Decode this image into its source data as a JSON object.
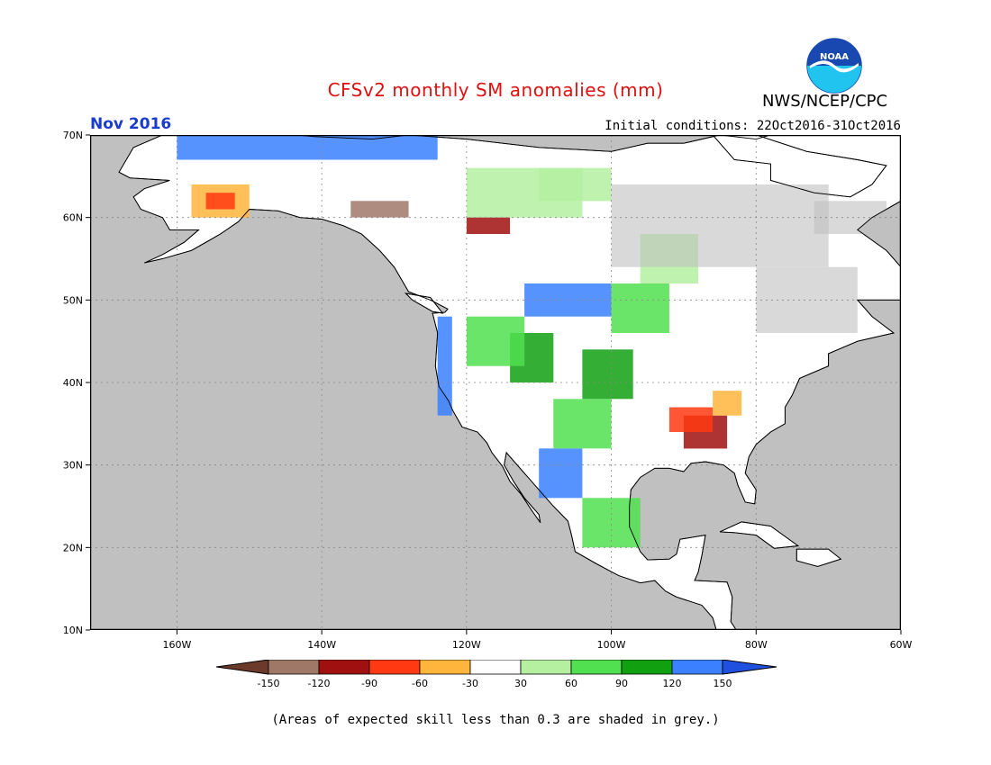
{
  "header": {
    "title": "CFSv2 monthly SM anomalies (mm)",
    "agency": "NWS/NCEP/CPC",
    "logo_text": "NOAA",
    "valid_month": "Nov 2016",
    "initial_conditions": "Initial conditions: 22Oct2016-31Oct2016"
  },
  "map": {
    "lon_range": [
      -172,
      -60
    ],
    "lat_range": [
      10,
      70
    ],
    "lat_ticks": [
      {
        "value": 70,
        "label": "70N"
      },
      {
        "value": 60,
        "label": "60N"
      },
      {
        "value": 50,
        "label": "50N"
      },
      {
        "value": 40,
        "label": "40N"
      },
      {
        "value": 30,
        "label": "30N"
      },
      {
        "value": 20,
        "label": "20N"
      },
      {
        "value": 10,
        "label": "10N"
      }
    ],
    "lon_ticks": [
      {
        "value": -160,
        "label": "160W"
      },
      {
        "value": -140,
        "label": "140W"
      },
      {
        "value": -120,
        "label": "120W"
      },
      {
        "value": -100,
        "label": "100W"
      },
      {
        "value": -80,
        "label": "80W"
      },
      {
        "value": -60,
        "label": "60W"
      }
    ],
    "colors": {
      "ocean": "#c0c0c0",
      "land": "#ffffff",
      "grey_skill": "#c0c0c0",
      "coast": "#000000",
      "grid": "#888888"
    }
  },
  "colorbar": {
    "labels": [
      "-150",
      "-120",
      "-90",
      "-60",
      "-30",
      "30",
      "60",
      "90",
      "120",
      "150"
    ],
    "colors": [
      "#6b3a2a",
      "#a07868",
      "#a01010",
      "#ff3a12",
      "#ffb43c",
      "#ffffff",
      "#b4f0a0",
      "#50e050",
      "#10a010",
      "#3a80ff",
      "#2050e0"
    ]
  },
  "footnote": "(Areas of expected skill less than 0.3 are shaded in grey.)"
}
